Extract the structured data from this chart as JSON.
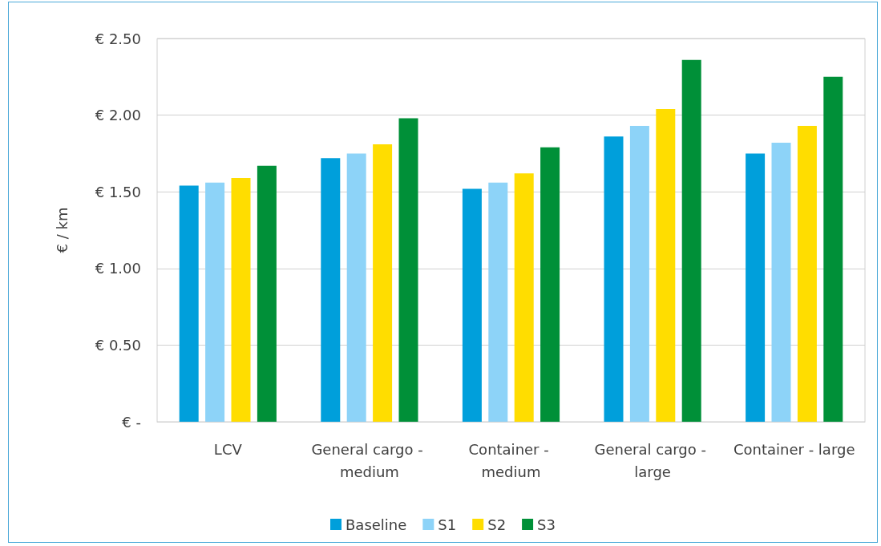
{
  "chart_data": {
    "type": "bar",
    "ylabel": "€ / km",
    "categories": [
      "LCV",
      "General cargo - medium",
      "Container - medium",
      "General cargo - large",
      "Container - large"
    ],
    "series": [
      {
        "name": "Baseline",
        "color": "#009fdb",
        "values": [
          1.54,
          1.72,
          1.52,
          1.86,
          1.75
        ]
      },
      {
        "name": "S1",
        "color": "#8dd3f8",
        "values": [
          1.56,
          1.75,
          1.56,
          1.93,
          1.82
        ]
      },
      {
        "name": "S2",
        "color": "#ffdd00",
        "values": [
          1.59,
          1.81,
          1.62,
          2.04,
          1.93
        ]
      },
      {
        "name": "S3",
        "color": "#009038",
        "values": [
          1.67,
          1.98,
          1.79,
          2.36,
          2.25
        ]
      }
    ],
    "ylim": [
      0,
      2.5
    ],
    "yticks": [
      {
        "value": 0,
        "label": "€ -"
      },
      {
        "value": 0.5,
        "label": "€ 0.50"
      },
      {
        "value": 1,
        "label": "€ 1.00"
      },
      {
        "value": 1.5,
        "label": "€ 1.50"
      },
      {
        "value": 2,
        "label": "€ 2.00"
      },
      {
        "value": 2.5,
        "label": "€ 2.50"
      }
    ],
    "grid": "y",
    "legend": "bottom"
  }
}
